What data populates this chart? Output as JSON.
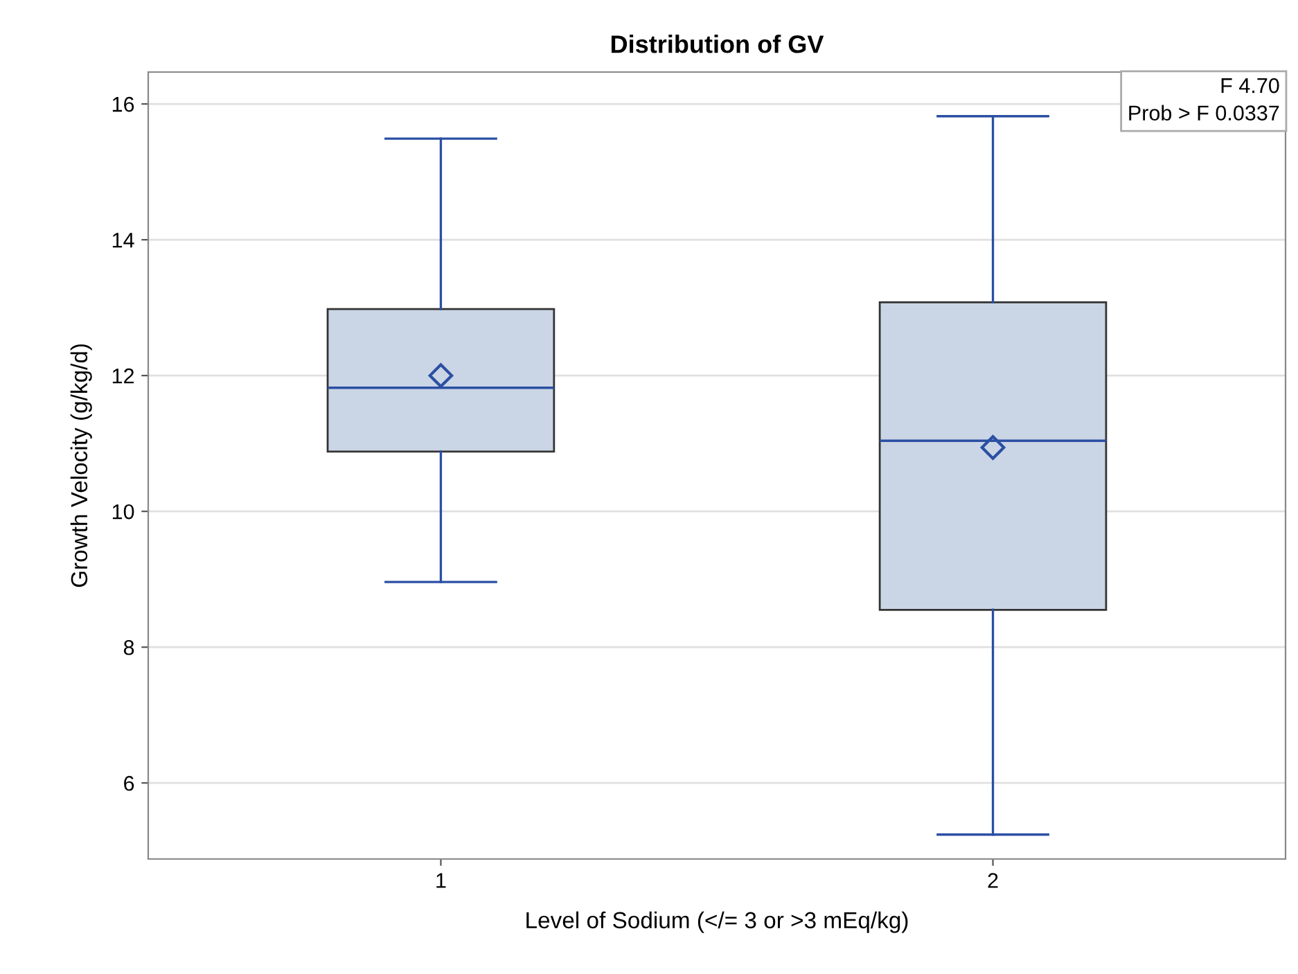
{
  "chart_data": {
    "type": "box",
    "title": "Distribution of GV",
    "xlabel": "Level of Sodium (</= 3 or >3 mEq/kg)",
    "ylabel": "Growth Velocity (g/kg/d)",
    "categories": [
      "1",
      "2"
    ],
    "boxes": [
      {
        "low": 8.96,
        "q1": 10.88,
        "median": 11.82,
        "q3": 12.98,
        "high": 15.49,
        "mean": 12.0
      },
      {
        "low": 5.24,
        "q1": 8.55,
        "median": 11.04,
        "q3": 13.08,
        "high": 15.82,
        "mean": 10.94
      }
    ],
    "color": "#cad5e5",
    "ylim": [
      4.88,
      16.47
    ],
    "yticks": [
      6,
      8,
      10,
      12,
      14,
      16
    ],
    "grid": "y",
    "marker": "diamond",
    "annotations": [
      "F 4.70",
      "Prob > F 0.0337"
    ]
  }
}
